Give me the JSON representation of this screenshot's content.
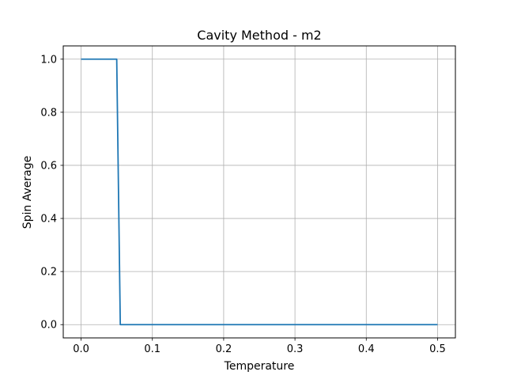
{
  "chart_data": {
    "type": "line",
    "title": "Cavity Method - m2",
    "xlabel": "Temperature",
    "ylabel": "Spin Average",
    "xlim": [
      -0.025,
      0.525
    ],
    "ylim": [
      -0.05,
      1.05
    ],
    "xticks": [
      0.0,
      0.1,
      0.2,
      0.3,
      0.4,
      0.5
    ],
    "xtick_labels": [
      "0.0",
      "0.1",
      "0.2",
      "0.3",
      "0.4",
      "0.5"
    ],
    "yticks": [
      0.0,
      0.2,
      0.4,
      0.6,
      0.8,
      1.0
    ],
    "ytick_labels": [
      "0.0",
      "0.2",
      "0.4",
      "0.6",
      "0.8",
      "1.0"
    ],
    "grid": true,
    "line_color": "#1f77b4",
    "series": [
      {
        "x": [
          0.0,
          0.05,
          0.055,
          0.5
        ],
        "y": [
          1.0,
          1.0,
          0.0,
          0.0
        ]
      }
    ]
  }
}
